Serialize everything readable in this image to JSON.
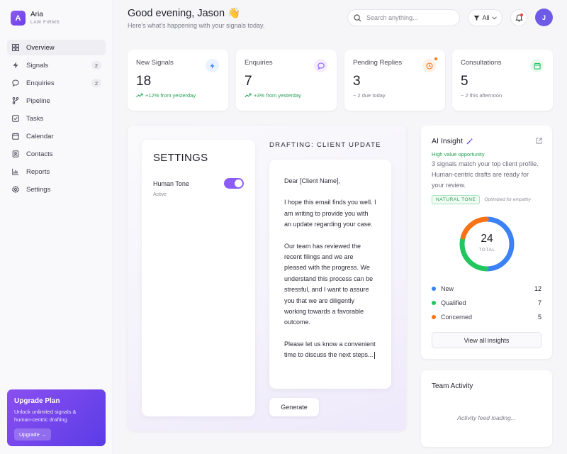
{
  "brand": {
    "initial": "A",
    "name": "Aria",
    "subtitle": "LAW FIRMS"
  },
  "sidebar": {
    "items": [
      {
        "label": "Overview",
        "icon": "grid-icon",
        "active": true
      },
      {
        "label": "Signals",
        "icon": "bolt-icon",
        "badge": "2"
      },
      {
        "label": "Enquiries",
        "icon": "chat-icon",
        "badge": "2"
      },
      {
        "label": "Pipeline",
        "icon": "branch-icon"
      },
      {
        "label": "Tasks",
        "icon": "checkbox-icon"
      },
      {
        "label": "Calendar",
        "icon": "calendar-icon"
      },
      {
        "label": "Contacts",
        "icon": "contacts-icon"
      },
      {
        "label": "Reports",
        "icon": "chart-icon"
      },
      {
        "label": "Settings",
        "icon": "gear-icon"
      }
    ]
  },
  "upgrade": {
    "title": "Upgrade Plan",
    "description": "Unlock unlimited signals & human-centric drafting",
    "button": "Upgrade →"
  },
  "header": {
    "greeting": "Good evening, Jason 👋",
    "subtitle": "Here's what's happening with your signals today.",
    "search_placeholder": "Search anything...",
    "filter_label": "All",
    "avatar_initial": "J"
  },
  "stats": [
    {
      "label": "New Signals",
      "value": "18",
      "delta": "+12% from yesterday",
      "trend": "up",
      "icon": "bolt-icon",
      "color": "#3b82f6"
    },
    {
      "label": "Enquiries",
      "value": "7",
      "delta": "+3% from yesterday",
      "trend": "up",
      "icon": "chat-icon",
      "color": "#8b5cf6"
    },
    {
      "label": "Pending Replies",
      "value": "3",
      "delta": "~ 2 due today",
      "trend": "neutral",
      "icon": "clock-icon",
      "color": "#f97316"
    },
    {
      "label": "Consultations",
      "value": "5",
      "delta": "~ 2 this afternoon",
      "trend": "neutral",
      "icon": "calendar-icon",
      "color": "#22c55e"
    }
  ],
  "settings": {
    "title": "SETTINGS",
    "tone_label": "Human Tone",
    "tone_status": "Active",
    "tone_enabled": true
  },
  "draft": {
    "title": "DRAFTING: CLIENT UPDATE",
    "greeting": "Dear [Client Name],",
    "para1": "I hope this email finds you well. I am writing to provide you with an update regarding your case.",
    "para2": "Our team has reviewed the recent filings and we are pleased with the progress. We understand this process can be stressful, and I want to assure you that we are diligently working towards a favorable outcome.",
    "para3": "Please let us know a convenient time to discuss the next steps...",
    "generate_label": "Generate"
  },
  "insight": {
    "title": "AI Insight",
    "tag": "High value opportunity",
    "description": "3 signals match your top client profile. Human-centric drafts are ready for your review.",
    "chip": "NATURAL TONE",
    "chip_note": "Optimized for empathy",
    "total": "24",
    "total_label": "TOTAL",
    "legend": [
      {
        "label": "New",
        "value": 12,
        "color": "#3b82f6"
      },
      {
        "label": "Qualified",
        "value": 7,
        "color": "#22c55e"
      },
      {
        "label": "Concerned",
        "value": 5,
        "color": "#f97316"
      }
    ],
    "button": "View all insights"
  },
  "team": {
    "title": "Team Activity",
    "loading": "Activity feed loading..."
  }
}
